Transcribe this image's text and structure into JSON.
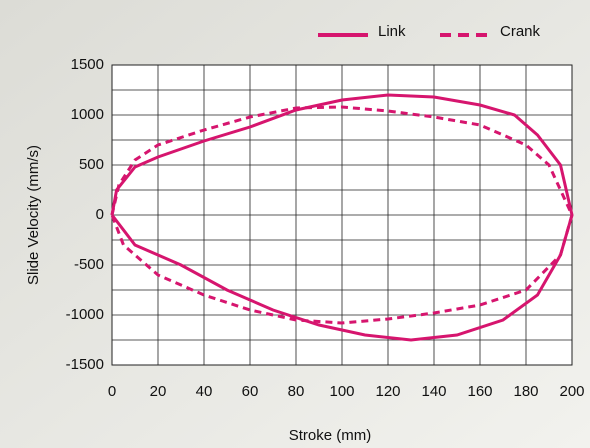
{
  "chart_data": {
    "type": "line",
    "xlabel": "Stroke  (mm)",
    "ylabel": "Slide Velocity (mm/s)",
    "xlim": [
      0,
      200
    ],
    "xticks": [
      0,
      20,
      40,
      60,
      80,
      100,
      120,
      140,
      160,
      180,
      200
    ],
    "ylim": [
      -1500,
      1500
    ],
    "yticks": [
      -1500,
      -1000,
      -500,
      0,
      500,
      1000,
      1500
    ],
    "ygrid": [
      -1500,
      -1250,
      -1000,
      -750,
      -500,
      -250,
      0,
      250,
      500,
      750,
      1000,
      1250,
      1500
    ],
    "grid": true,
    "legend": "top-right",
    "series": [
      {
        "name": "Link",
        "color": "#d6156e",
        "style": "solid",
        "x": [
          0,
          2,
          10,
          20,
          40,
          60,
          80,
          100,
          120,
          140,
          160,
          175,
          185,
          195,
          200,
          195,
          185,
          170,
          150,
          130,
          110,
          90,
          70,
          50,
          30,
          10,
          0
        ],
        "values": [
          0,
          250,
          480,
          580,
          740,
          880,
          1050,
          1150,
          1200,
          1180,
          1100,
          1000,
          800,
          500,
          0,
          -400,
          -800,
          -1050,
          -1200,
          -1250,
          -1200,
          -1100,
          -950,
          -750,
          -500,
          -300,
          0
        ]
      },
      {
        "name": "Crank",
        "color": "#d6156e",
        "style": "dashed",
        "x": [
          0,
          3,
          10,
          20,
          40,
          60,
          80,
          100,
          120,
          140,
          160,
          180,
          190,
          200,
          195,
          180,
          160,
          140,
          120,
          100,
          80,
          60,
          40,
          20,
          5,
          0
        ],
        "values": [
          0,
          300,
          550,
          700,
          850,
          980,
          1070,
          1080,
          1040,
          980,
          900,
          700,
          500,
          0,
          -400,
          -750,
          -900,
          -980,
          -1040,
          -1080,
          -1050,
          -950,
          -800,
          -600,
          -300,
          0
        ]
      }
    ]
  }
}
